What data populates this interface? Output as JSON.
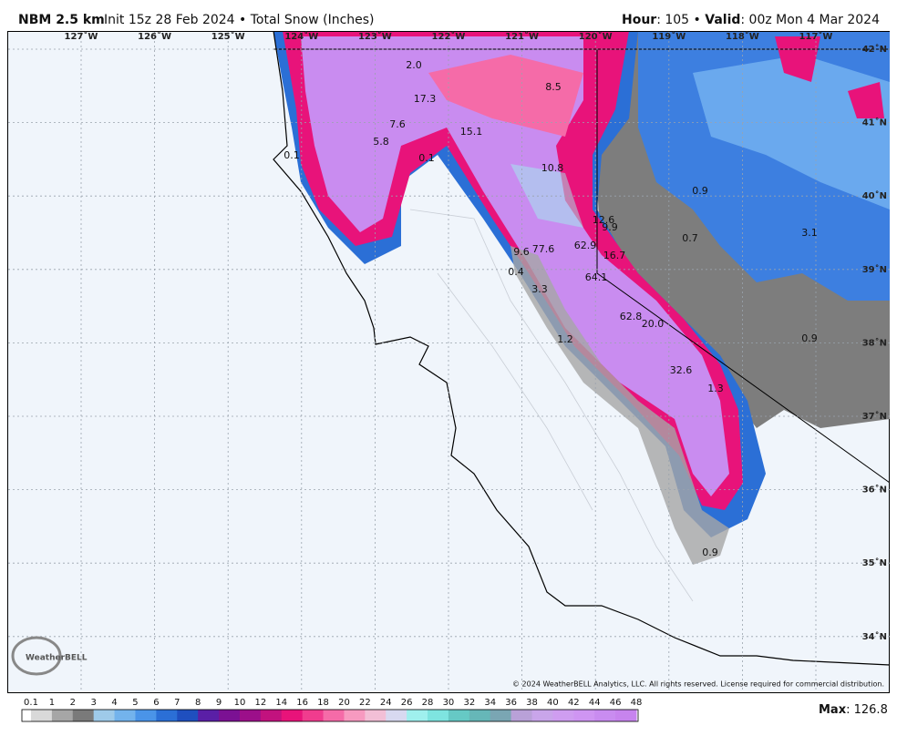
{
  "header": {
    "title": "NBM 2.5 km",
    "subtitle": "Init 15z 28 Feb 2024 • Total Snow (Inches)",
    "hour_label": "Hour",
    "hour_value": ": 105 • ",
    "valid_label": "Valid",
    "valid_value": ": 00z Mon 4 Mar 2024"
  },
  "map": {
    "longitudes": [
      "127˚W",
      "126˚W",
      "125˚W",
      "124˚W",
      "123˚W",
      "122˚W",
      "121˚W",
      "120˚W",
      "119˚W",
      "118˚W",
      "117˚W"
    ],
    "latitudes": [
      "42˚N",
      "41˚N",
      "40˚N",
      "39˚N",
      "38˚N",
      "37˚N",
      "36˚N",
      "35˚N",
      "34˚N"
    ],
    "spot_values": [
      "2.0",
      "17.3",
      "8.5",
      "7.6",
      "5.8",
      "0.1",
      "15.1",
      "0.1",
      "10.8",
      "0.9",
      "12.6",
      "9.9",
      "0.7",
      "3.1",
      "9.6",
      "77.6",
      "62.9",
      "16.7",
      "0.4",
      "64.1",
      "3.3",
      "62.8",
      "20.0",
      "0.9",
      "1.2",
      "32.6",
      "1.3",
      "0.9"
    ],
    "copyright": "© 2024 WeatherBELL Analytics, LLC. All rights reserved. License required for commercial distribution.",
    "logo": "WeatherBELL"
  },
  "legend": {
    "ticks": [
      0.1,
      1,
      2,
      3,
      4,
      5,
      6,
      7,
      8,
      9,
      10,
      12,
      14,
      16,
      18,
      20,
      22,
      24,
      26,
      28,
      30,
      32,
      34,
      36,
      38,
      40,
      42,
      44,
      46,
      48
    ],
    "colors": [
      "#d9d9d9",
      "#a6a6a6",
      "#7a7a7a",
      "#9ecae9",
      "#73b3ec",
      "#4a94e8",
      "#2b6fd6",
      "#1f4fbf",
      "#5a1fa6",
      "#7b1193",
      "#9c0f8a",
      "#c2127e",
      "#e8137a",
      "#f03c8e",
      "#f56ba8",
      "#f79ac0",
      "#f2bfd6",
      "#d8d9f0",
      "#9ff0ee",
      "#7ee4e0",
      "#66c9c5",
      "#66b7b8",
      "#7aa6b3",
      "#b9a1d8",
      "#c9a5ea",
      "#cf9df0",
      "#cf95f2",
      "#c98cf0",
      "#c784ee",
      "#c27cec"
    ],
    "max_label": "Max",
    "max_value": ": 126.8"
  }
}
